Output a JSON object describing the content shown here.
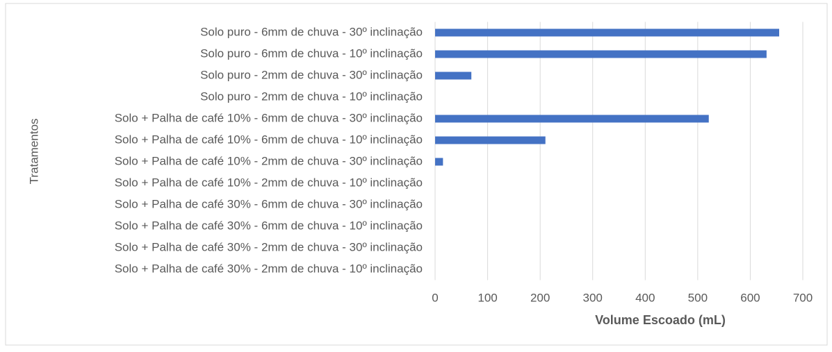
{
  "chart_data": {
    "type": "bar",
    "orientation": "horizontal",
    "xlabel": "Volume Escoado (mL)",
    "ylabel": "Tratamentos",
    "categories": [
      "Solo puro - 6mm de chuva - 30º inclinação",
      "Solo puro - 6mm de chuva - 10º inclinação",
      "Solo puro - 2mm de chuva - 30º inclinação",
      "Solo puro - 2mm de chuva - 10º inclinação",
      "Solo + Palha de café 10% - 6mm de chuva - 30º inclinação",
      "Solo + Palha de café 10% - 6mm de chuva - 10º inclinação",
      "Solo + Palha de café 10% - 2mm de chuva - 30º inclinação",
      "Solo + Palha de café 10% - 2mm de chuva - 10º inclinação",
      "Solo + Palha de café 30% - 6mm de chuva - 30º inclinação",
      "Solo + Palha de café 30% - 6mm de chuva - 10º inclinação",
      "Solo + Palha de café 30% - 2mm de chuva - 30º inclinação",
      "Solo + Palha de café 30% - 2mm de chuva - 10º inclinação"
    ],
    "values": [
      655,
      631,
      69,
      0,
      521,
      210,
      15,
      0,
      0,
      0,
      0,
      0
    ],
    "color": "#4472c4",
    "xlim": [
      0,
      700
    ],
    "xticks": [
      0,
      100,
      200,
      300,
      400,
      500,
      600,
      700
    ],
    "grid": true
  }
}
